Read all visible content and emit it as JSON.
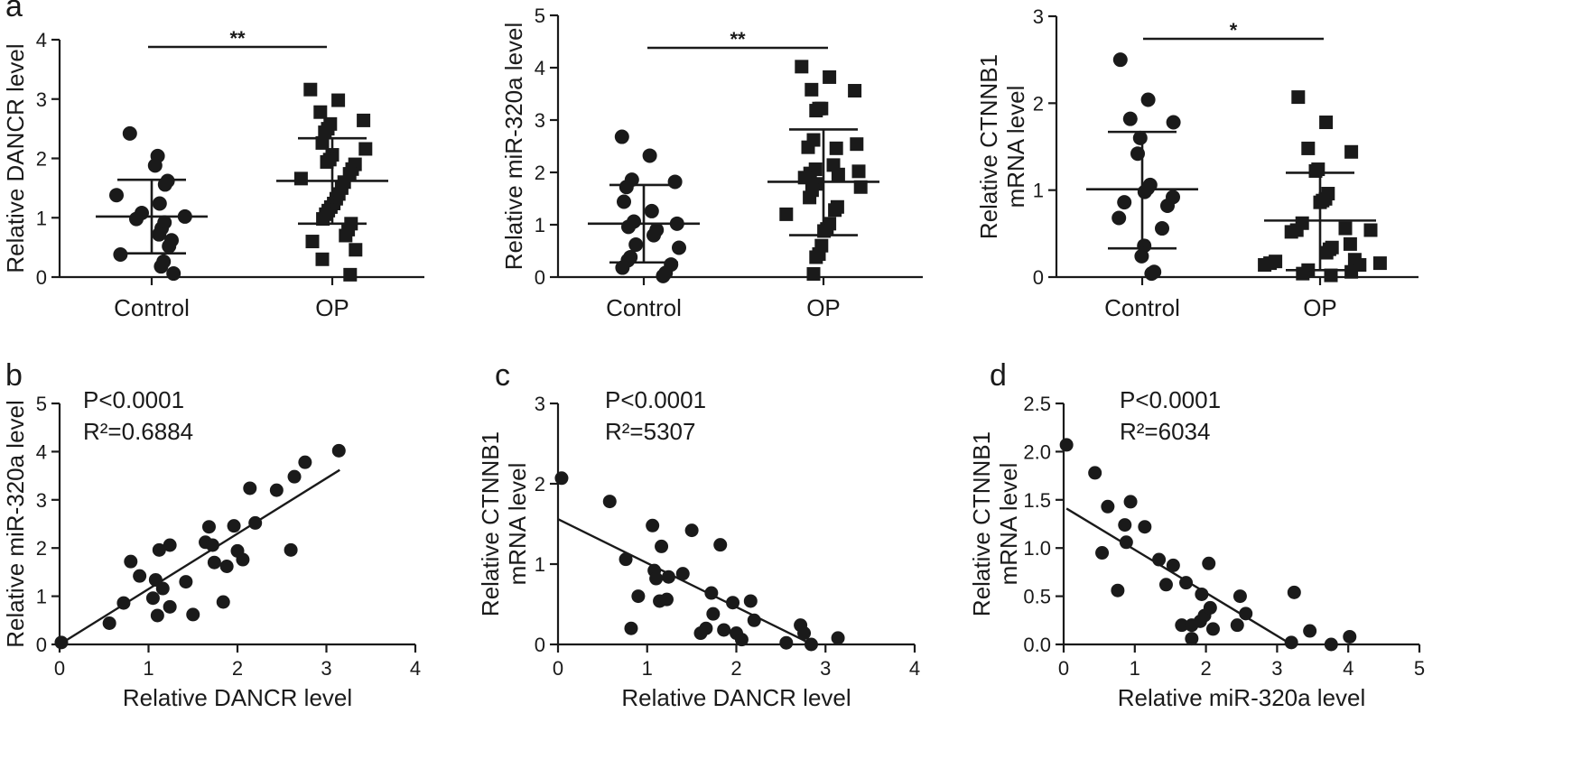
{
  "chart_data": [
    {
      "id": "a1",
      "panel_letter": "a",
      "type": "scatter",
      "subtype": "dot-plot",
      "ylabel": "Relative DANCR level",
      "ylim": [
        0,
        4
      ],
      "yticks": [
        0,
        1,
        2,
        3,
        4
      ],
      "categories": [
        "Control",
        "OP"
      ],
      "significance": "**",
      "groups": [
        {
          "name": "Control",
          "marker": "circle",
          "mean": 1.02,
          "sd_low": 0.4,
          "sd_high": 1.64,
          "values": [
            2.42,
            2.04,
            1.88,
            1.62,
            1.56,
            1.38,
            1.24,
            1.08,
            1.02,
            0.98,
            0.92,
            0.82,
            0.72,
            0.62,
            0.52,
            0.38,
            0.26,
            0.18,
            0.06
          ]
        },
        {
          "name": "OP",
          "marker": "square",
          "mean": 1.62,
          "sd_low": 0.9,
          "sd_high": 2.34,
          "values": [
            3.16,
            2.98,
            2.78,
            2.64,
            2.58,
            2.5,
            2.44,
            2.26,
            2.16,
            2.06,
            1.98,
            1.94,
            1.9,
            1.82,
            1.74,
            1.66,
            1.6,
            1.5,
            1.4,
            1.32,
            1.24,
            1.18,
            1.12,
            1.06,
            0.98,
            0.9,
            0.8,
            0.7,
            0.6,
            0.46,
            0.3,
            0.04
          ]
        }
      ]
    },
    {
      "id": "a2",
      "panel_letter": "",
      "type": "scatter",
      "subtype": "dot-plot",
      "ylabel": "Relative miR-320a level",
      "ylim": [
        0,
        5
      ],
      "yticks": [
        0,
        1,
        2,
        3,
        4,
        5
      ],
      "categories": [
        "Control",
        "OP"
      ],
      "significance": "**",
      "groups": [
        {
          "name": "Control",
          "marker": "circle",
          "mean": 1.02,
          "sd_low": 0.28,
          "sd_high": 1.76,
          "values": [
            2.68,
            2.32,
            1.86,
            1.82,
            1.72,
            1.44,
            1.26,
            1.06,
            1.02,
            0.96,
            0.9,
            0.8,
            0.62,
            0.56,
            0.38,
            0.32,
            0.24,
            0.18,
            0.08,
            0.02
          ]
        },
        {
          "name": "OP",
          "marker": "square",
          "mean": 1.82,
          "sd_low": 0.8,
          "sd_high": 2.82,
          "values": [
            4.02,
            3.82,
            3.58,
            3.56,
            3.22,
            3.22,
            3.18,
            2.62,
            2.54,
            2.48,
            2.46,
            2.14,
            2.06,
            2.02,
            1.98,
            1.96,
            1.9,
            1.78,
            1.72,
            1.66,
            1.52,
            1.34,
            1.28,
            1.2,
            1.02,
            0.92,
            0.88,
            0.6,
            0.44,
            0.38,
            0.06
          ]
        }
      ]
    },
    {
      "id": "a3",
      "panel_letter": "",
      "type": "scatter",
      "subtype": "dot-plot",
      "ylabel": "Relative CTNNB1 mRNA level",
      "ylabel_lines": [
        "Relative CTNNB1",
        "mRNA level"
      ],
      "ylim": [
        0,
        3
      ],
      "yticks": [
        0,
        1,
        2,
        3
      ],
      "categories": [
        "Control",
        "OP"
      ],
      "significance": "*",
      "groups": [
        {
          "name": "Control",
          "marker": "circle",
          "mean": 1.01,
          "sd_low": 0.33,
          "sd_high": 1.67,
          "values": [
            2.5,
            2.04,
            1.82,
            1.78,
            1.6,
            1.42,
            1.06,
            1.02,
            0.98,
            0.92,
            0.86,
            0.82,
            0.68,
            0.56,
            0.36,
            0.24,
            0.06,
            0.04
          ]
        },
        {
          "name": "OP",
          "marker": "square",
          "mean": 0.65,
          "sd_low": 0.08,
          "sd_high": 1.2,
          "values": [
            2.07,
            1.78,
            1.48,
            1.44,
            1.24,
            1.22,
            0.96,
            0.9,
            0.88,
            0.86,
            0.62,
            0.56,
            0.54,
            0.54,
            0.52,
            0.38,
            0.34,
            0.32,
            0.28,
            0.2,
            0.18,
            0.16,
            0.16,
            0.14,
            0.14,
            0.08,
            0.06,
            0.04,
            0.02
          ]
        }
      ]
    },
    {
      "id": "b",
      "panel_letter": "b",
      "type": "scatter",
      "xlabel": "Relative DANCR level",
      "ylabel": "Relative miR-320a level",
      "xlim": [
        0,
        4
      ],
      "ylim": [
        0,
        5
      ],
      "xticks": [
        0,
        1,
        2,
        3,
        4
      ],
      "yticks": [
        0,
        1,
        2,
        3,
        4,
        5
      ],
      "stats": {
        "p": "P<0.0001",
        "r2": "R²=0.6884"
      },
      "fit_line": {
        "x": [
          0.0,
          3.15
        ],
        "y": [
          0.0,
          3.62
        ]
      },
      "points": [
        [
          0.02,
          0.04
        ],
        [
          0.56,
          0.44
        ],
        [
          0.72,
          0.86
        ],
        [
          0.8,
          1.72
        ],
        [
          0.9,
          1.42
        ],
        [
          1.05,
          0.96
        ],
        [
          1.08,
          1.34
        ],
        [
          1.1,
          0.6
        ],
        [
          1.12,
          1.96
        ],
        [
          1.16,
          1.16
        ],
        [
          1.24,
          0.78
        ],
        [
          1.24,
          2.06
        ],
        [
          1.42,
          1.3
        ],
        [
          1.5,
          0.62
        ],
        [
          1.64,
          2.12
        ],
        [
          1.68,
          2.44
        ],
        [
          1.72,
          2.06
        ],
        [
          1.74,
          1.7
        ],
        [
          1.84,
          0.88
        ],
        [
          1.88,
          1.62
        ],
        [
          1.96,
          2.46
        ],
        [
          2.0,
          1.94
        ],
        [
          2.06,
          1.76
        ],
        [
          2.14,
          3.24
        ],
        [
          2.2,
          2.52
        ],
        [
          2.44,
          3.2
        ],
        [
          2.6,
          1.96
        ],
        [
          2.64,
          3.48
        ],
        [
          2.76,
          3.78
        ],
        [
          3.14,
          4.02
        ]
      ]
    },
    {
      "id": "c",
      "panel_letter": "c",
      "type": "scatter",
      "xlabel": "Relative DANCR level",
      "ylabel": "Relative CTNNB1 mRNA level",
      "ylabel_lines": [
        "Relative CTNNB1",
        "mRNA level"
      ],
      "xlim": [
        0,
        4
      ],
      "ylim": [
        0,
        3
      ],
      "xticks": [
        0,
        1,
        2,
        3,
        4
      ],
      "yticks": [
        0,
        1,
        2,
        3
      ],
      "stats": {
        "p": "P<0.0001",
        "r2": "R²=5307"
      },
      "fit_line": {
        "x": [
          0.0,
          2.85
        ],
        "y": [
          1.56,
          0.0
        ]
      },
      "points": [
        [
          0.04,
          2.07
        ],
        [
          0.58,
          1.78
        ],
        [
          0.76,
          1.06
        ],
        [
          0.82,
          0.2
        ],
        [
          0.9,
          0.6
        ],
        [
          1.06,
          1.48
        ],
        [
          1.08,
          0.92
        ],
        [
          1.1,
          0.82
        ],
        [
          1.14,
          0.54
        ],
        [
          1.16,
          1.22
        ],
        [
          1.22,
          0.56
        ],
        [
          1.24,
          0.84
        ],
        [
          1.4,
          0.88
        ],
        [
          1.5,
          1.42
        ],
        [
          1.6,
          0.14
        ],
        [
          1.66,
          0.2
        ],
        [
          1.72,
          0.64
        ],
        [
          1.74,
          0.38
        ],
        [
          1.82,
          1.24
        ],
        [
          1.86,
          0.18
        ],
        [
          1.96,
          0.52
        ],
        [
          2.0,
          0.14
        ],
        [
          2.06,
          0.06
        ],
        [
          2.16,
          0.54
        ],
        [
          2.2,
          0.3
        ],
        [
          2.56,
          0.02
        ],
        [
          2.72,
          0.24
        ],
        [
          2.76,
          0.14
        ],
        [
          2.84,
          0.0
        ],
        [
          3.14,
          0.08
        ]
      ]
    },
    {
      "id": "d",
      "panel_letter": "d",
      "type": "scatter",
      "xlabel": "Relative miR-320a level",
      "ylabel": "Relative CTNNB1 mRNA level",
      "ylabel_lines": [
        "Relative CTNNB1",
        "mRNA level"
      ],
      "xlim": [
        0,
        5
      ],
      "ylim": [
        0,
        2.5
      ],
      "xticks": [
        0,
        1,
        2,
        3,
        4,
        5
      ],
      "yticks": [
        0.0,
        0.5,
        1.0,
        1.5,
        2.0,
        2.5
      ],
      "ytick_labels": [
        "0.0",
        "0.5",
        "1.0",
        "1.5",
        "2.0",
        "2.5"
      ],
      "stats": {
        "p": "P<0.0001",
        "r2": "R²=6034"
      },
      "fit_line": {
        "x": [
          0.04,
          3.2
        ],
        "y": [
          1.41,
          0.0
        ]
      },
      "points": [
        [
          0.04,
          2.07
        ],
        [
          0.44,
          1.78
        ],
        [
          0.54,
          0.95
        ],
        [
          0.62,
          1.43
        ],
        [
          0.76,
          0.56
        ],
        [
          0.86,
          1.24
        ],
        [
          0.88,
          1.06
        ],
        [
          0.94,
          1.48
        ],
        [
          1.14,
          1.22
        ],
        [
          1.34,
          0.88
        ],
        [
          1.44,
          0.62
        ],
        [
          1.54,
          0.82
        ],
        [
          1.66,
          0.2
        ],
        [
          1.72,
          0.64
        ],
        [
          1.8,
          0.06
        ],
        [
          1.8,
          0.2
        ],
        [
          1.92,
          0.24
        ],
        [
          1.94,
          0.52
        ],
        [
          1.98,
          0.3
        ],
        [
          2.04,
          0.84
        ],
        [
          2.06,
          0.38
        ],
        [
          2.1,
          0.16
        ],
        [
          2.44,
          0.2
        ],
        [
          2.48,
          0.5
        ],
        [
          2.56,
          0.32
        ],
        [
          3.2,
          0.02
        ],
        [
          3.24,
          0.54
        ],
        [
          3.46,
          0.14
        ],
        [
          3.76,
          0.0
        ],
        [
          4.02,
          0.08
        ]
      ]
    }
  ]
}
